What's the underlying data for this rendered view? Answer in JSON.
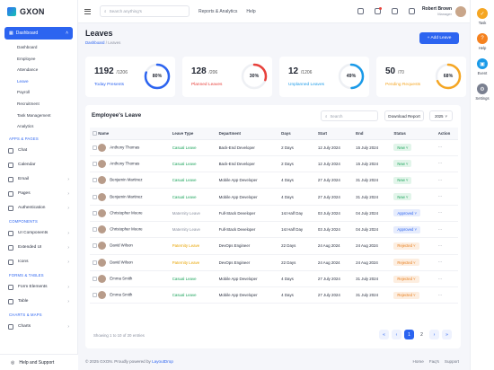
{
  "brand": {
    "name": "GXON"
  },
  "header": {
    "search_placeholder": "Search anything's",
    "links": [
      "Reports & Analytics",
      "Help"
    ],
    "user_name": "Robert Brown",
    "user_role": "Manager"
  },
  "sidebar": {
    "dashboard": "Dashboard",
    "sub_items": [
      "Dashboard",
      "Employee",
      "Attendance",
      "Leave",
      "Payroll",
      "Recruitment",
      "Task Management",
      "Analytics"
    ],
    "sections": [
      {
        "title": "APPS & PAGES",
        "items": [
          "Chat",
          "Calendar",
          "Email",
          "Pages",
          "Authentication"
        ]
      },
      {
        "title": "COMPONENTS",
        "items": [
          "UI Components",
          "Extended UI",
          "Icons"
        ]
      },
      {
        "title": "FORMS & TABLES",
        "items": [
          "Form Elements",
          "Table"
        ]
      },
      {
        "title": "CHARTS & MAPS",
        "items": [
          "Charts"
        ]
      }
    ],
    "help": "Help and Support"
  },
  "rail": [
    {
      "label": "Task",
      "color": "#f5a623",
      "icon": "task-icon"
    },
    {
      "label": "Help",
      "color": "#f5821f",
      "icon": "help-icon"
    },
    {
      "label": "Event",
      "color": "#1a9ae8",
      "icon": "event-icon"
    },
    {
      "label": "Settings",
      "color": "#7a8090",
      "icon": "gear-icon"
    }
  ],
  "page": {
    "title": "Leaves",
    "crumb_home": "Dashboard",
    "crumb_sep": "/",
    "crumb_current": "Leaves",
    "add_label": "+ Add Leave"
  },
  "cards": [
    {
      "value": "1192",
      "total": "/1206",
      "label": "Today Presents",
      "pct": "80%",
      "fraction": 0.8,
      "color": "#2c64f0"
    },
    {
      "value": "128",
      "total": "/206",
      "label": "Planned Leaves",
      "pct": "30%",
      "fraction": 0.3,
      "color": "#e8413b"
    },
    {
      "value": "12",
      "total": "/1206",
      "label": "Unplanned Leaves",
      "pct": "49%",
      "fraction": 0.49,
      "color": "#1a9ae8"
    },
    {
      "value": "50",
      "total": "/70",
      "label": "Pending Requests",
      "pct": "68%",
      "fraction": 0.68,
      "color": "#f5a623"
    }
  ],
  "table": {
    "title": "Employee's Leave",
    "search_placeholder": "Search",
    "download_label": "Download Report",
    "year": "2025",
    "columns": [
      "Name",
      "Leave Type",
      "Department",
      "Days",
      "Start",
      "End",
      "Status",
      "Action"
    ],
    "rows": [
      [
        "Anthony Thomas",
        "Casual Leave",
        "Back-End Developer",
        "2 Days",
        "12 July 2024",
        "15 July 2024",
        "New"
      ],
      [
        "Anthony Thomas",
        "Casual Leave",
        "Back-End Developer",
        "2 Days",
        "12 July 2024",
        "15 July 2024",
        "New"
      ],
      [
        "Benjamin Martinez",
        "Casual Leave",
        "Mobile App Developer",
        "4 Days",
        "27 July 2024",
        "31 July 2024",
        "New"
      ],
      [
        "Benjamin Martinez",
        "Casual Leave",
        "Mobile App Developer",
        "4 Days",
        "27 July 2024",
        "31 July 2024",
        "New"
      ],
      [
        "Christopher Moore",
        "Maternity Leave",
        "Full-Stack Developer",
        "1st Half Day",
        "03 July 2024",
        "04 July 2024",
        "Approved"
      ],
      [
        "Christopher Moore",
        "Maternity Leave",
        "Full-Stack Developer",
        "1st Half Day",
        "03 July 2024",
        "04 July 2024",
        "Approved"
      ],
      [
        "David Wilson",
        "Paternity Leave",
        "DevOps Engineer",
        "22 Days",
        "24 Aug 2024",
        "24 Aug 2024",
        "Rejected"
      ],
      [
        "David Wilson",
        "Paternity Leave",
        "DevOps Engineer",
        "22 Days",
        "24 Aug 2024",
        "24 Aug 2024",
        "Rejected"
      ],
      [
        "Emma Smith",
        "Casual Leave",
        "Mobile App Developer",
        "4 Days",
        "27 July 2024",
        "31 July 2024",
        "Rejected"
      ],
      [
        "Emma Smith",
        "Casual Leave",
        "Mobile App Developer",
        "4 Days",
        "27 July 2024",
        "31 July 2024",
        "Rejected"
      ]
    ],
    "footer_text": "Showing 1 to 10 of 20 entries",
    "pages": [
      "«",
      "‹",
      "1",
      "2",
      "›",
      "»"
    ],
    "active_page": "1"
  },
  "footer": {
    "prefix": "© 2025 GXON. Proudly powered by",
    "brand": "LayoutDrop",
    "links": [
      "Home",
      "Faq's",
      "Support"
    ]
  }
}
